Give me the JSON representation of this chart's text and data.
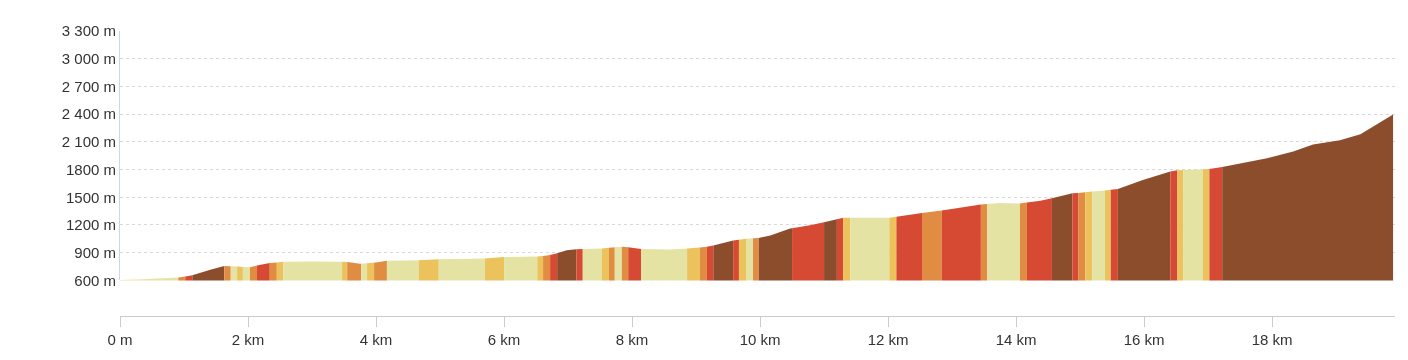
{
  "chart_data": {
    "type": "area",
    "xlim": [
      0,
      19.92
    ],
    "ylim": [
      600,
      3300
    ],
    "xticks": [
      {
        "value": 0,
        "label": "0 m"
      },
      {
        "value": 2,
        "label": "2 km"
      },
      {
        "value": 4,
        "label": "4 km"
      },
      {
        "value": 6,
        "label": "6 km"
      },
      {
        "value": 8,
        "label": "8 km"
      },
      {
        "value": 10,
        "label": "10 km"
      },
      {
        "value": 12,
        "label": "12 km"
      },
      {
        "value": 14,
        "label": "14 km"
      },
      {
        "value": 16,
        "label": "16 km"
      },
      {
        "value": 18,
        "label": "18 km"
      }
    ],
    "yticks": [
      {
        "value": 600,
        "label": "600 m"
      },
      {
        "value": 900,
        "label": "900 m"
      },
      {
        "value": 1200,
        "label": "1200 m"
      },
      {
        "value": 1500,
        "label": "1500 m"
      },
      {
        "value": 1800,
        "label": "1800 m"
      },
      {
        "value": 2100,
        "label": "2 100 m"
      },
      {
        "value": 2400,
        "label": "2 400 m"
      },
      {
        "value": 2700,
        "label": "2 700 m"
      },
      {
        "value": 3000,
        "label": "3 000 m"
      },
      {
        "value": 3300,
        "label": "3 300 m"
      }
    ],
    "grid": "y",
    "marker": "none",
    "series": [
      {
        "color": "#e5e3a3",
        "x": [
          0,
          0.36,
          0.91
        ],
        "values": [
          605,
          613,
          632
        ]
      },
      {
        "color": "#e08c42",
        "x": [
          0.91,
          1.02
        ],
        "values": [
          632,
          642
        ]
      },
      {
        "color": "#d64a33",
        "x": [
          1.02,
          1.13
        ],
        "values": [
          642,
          656
        ]
      },
      {
        "color": "#8b4d2c",
        "x": [
          1.13,
          1.41,
          1.63
        ],
        "values": [
          656,
          716,
          755
        ]
      },
      {
        "color": "#e08c42",
        "x": [
          1.63,
          1.73
        ],
        "values": [
          755,
          752
        ]
      },
      {
        "color": "#e5e3a3",
        "x": [
          1.73,
          1.83
        ],
        "values": [
          752,
          750
        ]
      },
      {
        "color": "#ebc25b",
        "x": [
          1.83,
          1.92
        ],
        "values": [
          750,
          746
        ]
      },
      {
        "color": "#e5e3a3",
        "x": [
          1.92,
          2.03
        ],
        "values": [
          746,
          741
        ]
      },
      {
        "color": "#e08c42",
        "x": [
          2.03,
          2.14
        ],
        "values": [
          741,
          760
        ]
      },
      {
        "color": "#d64a33",
        "x": [
          2.14,
          2.34
        ],
        "values": [
          760,
          787
        ]
      },
      {
        "color": "#e08c42",
        "x": [
          2.34,
          2.45
        ],
        "values": [
          787,
          794
        ]
      },
      {
        "color": "#ebc25b",
        "x": [
          2.45,
          2.55
        ],
        "values": [
          794,
          801
        ]
      },
      {
        "color": "#e5e3a3",
        "x": [
          2.55,
          2.97,
          3.47
        ],
        "values": [
          801,
          805,
          801
        ]
      },
      {
        "color": "#ebc25b",
        "x": [
          3.47,
          3.55
        ],
        "values": [
          801,
          800
        ]
      },
      {
        "color": "#e08c42",
        "x": [
          3.55,
          3.75,
          3.77
        ],
        "values": [
          800,
          780,
          781
        ]
      },
      {
        "color": "#e5e3a3",
        "x": [
          3.77,
          3.86
        ],
        "values": [
          781,
          785
        ]
      },
      {
        "color": "#ebc25b",
        "x": [
          3.86,
          3.97
        ],
        "values": [
          785,
          792
        ]
      },
      {
        "color": "#e08c42",
        "x": [
          3.97,
          4.17
        ],
        "values": [
          792,
          812
        ]
      },
      {
        "color": "#e5e3a3",
        "x": [
          4.17,
          4.67
        ],
        "values": [
          812,
          819
        ]
      },
      {
        "color": "#ebc25b",
        "x": [
          4.67,
          4.98
        ],
        "values": [
          819,
          829
        ]
      },
      {
        "color": "#e5e3a3",
        "x": [
          4.98,
          5.7
        ],
        "values": [
          829,
          838
        ]
      },
      {
        "color": "#ebc25b",
        "x": [
          5.7,
          6.0
        ],
        "values": [
          838,
          852
        ]
      },
      {
        "color": "#e5e3a3",
        "x": [
          6.0,
          6.52
        ],
        "values": [
          852,
          859
        ]
      },
      {
        "color": "#ebc25b",
        "x": [
          6.52,
          6.61
        ],
        "values": [
          859,
          864
        ]
      },
      {
        "color": "#e08c42",
        "x": [
          6.61,
          6.72
        ],
        "values": [
          864,
          875
        ]
      },
      {
        "color": "#d64a33",
        "x": [
          6.72,
          6.83
        ],
        "values": [
          875,
          893
        ]
      },
      {
        "color": "#8b4d2c",
        "x": [
          6.83,
          6.98,
          7.13
        ],
        "values": [
          893,
          926,
          936
        ]
      },
      {
        "color": "#d64a33",
        "x": [
          7.13,
          7.23
        ],
        "values": [
          936,
          941
        ]
      },
      {
        "color": "#e5e3a3",
        "x": [
          7.23,
          7.53
        ],
        "values": [
          941,
          945
        ]
      },
      {
        "color": "#ebc25b",
        "x": [
          7.53,
          7.64
        ],
        "values": [
          945,
          952
        ]
      },
      {
        "color": "#e08c42",
        "x": [
          7.64,
          7.73
        ],
        "values": [
          952,
          958
        ]
      },
      {
        "color": "#e5e3a3",
        "x": [
          7.73,
          7.84
        ],
        "values": [
          958,
          965
        ]
      },
      {
        "color": "#e08c42",
        "x": [
          7.84,
          7.94
        ],
        "values": [
          965,
          958
        ]
      },
      {
        "color": "#d64a33",
        "x": [
          7.94,
          8.14
        ],
        "values": [
          958,
          939
        ]
      },
      {
        "color": "#e5e3a3",
        "x": [
          8.14,
          8.59,
          8.86
        ],
        "values": [
          939,
          934,
          946
        ]
      },
      {
        "color": "#ebc25b",
        "x": [
          8.86,
          9.06
        ],
        "values": [
          946,
          956
        ]
      },
      {
        "color": "#e08c42",
        "x": [
          9.06,
          9.17
        ],
        "values": [
          956,
          965
        ]
      },
      {
        "color": "#d64a33",
        "x": [
          9.17,
          9.27
        ],
        "values": [
          965,
          977
        ]
      },
      {
        "color": "#8b4d2c",
        "x": [
          9.27,
          9.58
        ],
        "values": [
          977,
          1033
        ]
      },
      {
        "color": "#d64a33",
        "x": [
          9.58,
          9.67
        ],
        "values": [
          1033,
          1041
        ]
      },
      {
        "color": "#ebc25b",
        "x": [
          9.67,
          9.78
        ],
        "values": [
          1041,
          1050
        ]
      },
      {
        "color": "#e5e3a3",
        "x": [
          9.78,
          9.89
        ],
        "values": [
          1050,
          1056
        ]
      },
      {
        "color": "#e08c42",
        "x": [
          9.89,
          9.98
        ],
        "values": [
          1056,
          1058
        ]
      },
      {
        "color": "#8b4d2c",
        "x": [
          9.98,
          10.16,
          10.47,
          10.5
        ],
        "values": [
          1058,
          1087,
          1162,
          1165
        ]
      },
      {
        "color": "#d64a33",
        "x": [
          10.5,
          10.78,
          11.0
        ],
        "values": [
          1165,
          1197,
          1229
        ]
      },
      {
        "color": "#8b4d2c",
        "x": [
          11.0,
          11.2
        ],
        "values": [
          1229,
          1262
        ]
      },
      {
        "color": "#d64a33",
        "x": [
          11.2,
          11.3
        ],
        "values": [
          1262,
          1279
        ]
      },
      {
        "color": "#ebc25b",
        "x": [
          11.3,
          11.41
        ],
        "values": [
          1279,
          1279
        ]
      },
      {
        "color": "#e5e3a3",
        "x": [
          11.41,
          12.02
        ],
        "values": [
          1279,
          1279
        ]
      },
      {
        "color": "#ebc25b",
        "x": [
          12.02,
          12.13
        ],
        "values": [
          1279,
          1290
        ]
      },
      {
        "color": "#d64a33",
        "x": [
          12.13,
          12.45,
          12.53
        ],
        "values": [
          1290,
          1322,
          1329
        ]
      },
      {
        "color": "#e08c42",
        "x": [
          12.53,
          12.84
        ],
        "values": [
          1329,
          1357
        ]
      },
      {
        "color": "#d64a33",
        "x": [
          12.84,
          13.45
        ],
        "values": [
          1357,
          1422
        ]
      },
      {
        "color": "#e08c42",
        "x": [
          13.45,
          13.55
        ],
        "values": [
          1422,
          1427
        ]
      },
      {
        "color": "#e5e3a3",
        "x": [
          13.55,
          13.75,
          14.06
        ],
        "values": [
          1427,
          1437,
          1432
        ]
      },
      {
        "color": "#e08c42",
        "x": [
          14.06,
          14.17
        ],
        "values": [
          1432,
          1442
        ]
      },
      {
        "color": "#d64a33",
        "x": [
          14.17,
          14.38,
          14.56
        ],
        "values": [
          1442,
          1461,
          1490
        ]
      },
      {
        "color": "#8b4d2c",
        "x": [
          14.56,
          14.88
        ],
        "values": [
          1490,
          1542
        ]
      },
      {
        "color": "#d64a33",
        "x": [
          14.88,
          14.97
        ],
        "values": [
          1542,
          1547
        ]
      },
      {
        "color": "#e08c42",
        "x": [
          14.97,
          15.08
        ],
        "values": [
          1547,
          1554
        ]
      },
      {
        "color": "#ebc25b",
        "x": [
          15.08,
          15.19
        ],
        "values": [
          1554,
          1561
        ]
      },
      {
        "color": "#e5e3a3",
        "x": [
          15.19,
          15.39
        ],
        "values": [
          1561,
          1573
        ]
      },
      {
        "color": "#ebc25b",
        "x": [
          15.39,
          15.48
        ],
        "values": [
          1573,
          1580
        ]
      },
      {
        "color": "#d64a33",
        "x": [
          15.48,
          15.59
        ],
        "values": [
          1580,
          1590
        ]
      },
      {
        "color": "#8b4d2c",
        "x": [
          15.59,
          15.98,
          16.41
        ],
        "values": [
          1590,
          1686,
          1779
        ]
      },
      {
        "color": "#d64a33",
        "x": [
          16.41,
          16.52
        ],
        "values": [
          1779,
          1793
        ]
      },
      {
        "color": "#ebc25b",
        "x": [
          16.52,
          16.61
        ],
        "values": [
          1793,
          1795
        ]
      },
      {
        "color": "#e5e3a3",
        "x": [
          16.61,
          16.92
        ],
        "values": [
          1795,
          1803
        ]
      },
      {
        "color": "#ebc25b",
        "x": [
          16.92,
          17.02
        ],
        "values": [
          1803,
          1807
        ]
      },
      {
        "color": "#d64a33",
        "x": [
          17.02,
          17.22
        ],
        "values": [
          1807,
          1827
        ]
      },
      {
        "color": "#8b4d2c",
        "x": [
          17.22,
          17.92,
          18.33,
          18.64,
          19.06,
          19.38,
          19.89
        ],
        "values": [
          1827,
          1921,
          1996,
          2071,
          2117,
          2181,
          2395
        ]
      }
    ]
  }
}
